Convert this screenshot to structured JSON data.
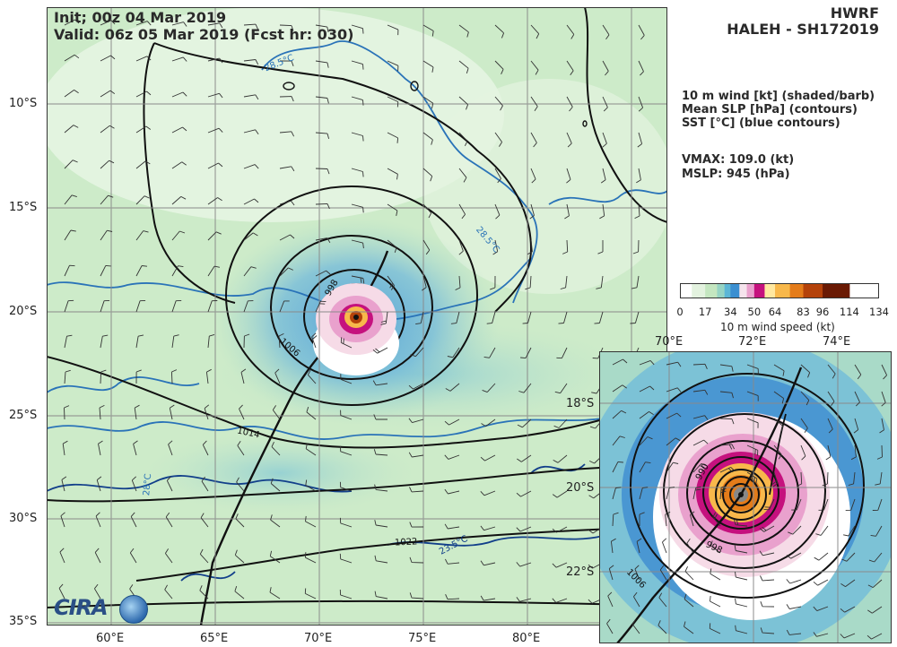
{
  "header": {
    "init": "Init;   00z 04 Mar 2019",
    "valid": "Valid: 06z 05 Mar 2019 (Fcst hr: 030)",
    "model": "HWRF",
    "storm": "HALEH - SH172019"
  },
  "legend": {
    "line1": "10 m wind [kt] (shaded/barb)",
    "line2": "Mean SLP [hPa] (contours)",
    "line3": "SST [°C] (blue contours)"
  },
  "stats": {
    "vmax": "VMAX: 109.0 (kt)",
    "mslp": "MSLP:  945 (hPa)"
  },
  "colorbar": {
    "label": "10 m wind speed (kt)",
    "ticks": [
      "0",
      "17",
      "34",
      "50",
      "64",
      "83",
      "96",
      "114",
      "134"
    ],
    "colors": [
      "#ffffff",
      "#e3f2df",
      "#c4e6c0",
      "#96d4c4",
      "#5cb6d6",
      "#3b8fd1",
      "#f5e3ec",
      "#e9a1cd",
      "#c5117e",
      "#ffe8a0",
      "#f8b84b",
      "#e47c1a",
      "#b4420a",
      "#6a1a04"
    ]
  },
  "main_map": {
    "lat_labels": [
      "10°S",
      "15°S",
      "20°S",
      "25°S",
      "30°S",
      "35°S"
    ],
    "lon_labels": [
      "60°E",
      "65°E",
      "70°E",
      "75°E",
      "80°E"
    ],
    "slp_labels": [
      "998",
      "1006",
      "1014",
      "1022"
    ],
    "sst_labels": [
      "28.5°C",
      "28.5°C",
      "28°C",
      "23.5°C"
    ]
  },
  "inset_map": {
    "lat_labels": [
      "18°S",
      "20°S",
      "22°S"
    ],
    "lon_labels": [
      "70°E",
      "72°E",
      "74°E"
    ],
    "slp_labels": [
      "990",
      "998",
      "1006"
    ]
  },
  "logo": {
    "text": "CIRA"
  },
  "chart_data": {
    "type": "heatmap",
    "title": "HWRF HALEH - SH172019",
    "storm_center": {
      "lon": 71.8,
      "lat": -20.2
    },
    "vmax_kt": 109.0,
    "mslp_hpa": 945,
    "main_extent": {
      "lon": [
        56.8,
        86.7
      ],
      "lat": [
        -35.3,
        -5.4
      ]
    },
    "inset_extent": {
      "lon": [
        69.0,
        75.9
      ],
      "lat": [
        -16.6,
        -23.4
      ]
    },
    "slp_contours_hpa": [
      998,
      1006,
      1014,
      1022
    ],
    "wind_colorbar_kt": [
      0,
      17,
      34,
      50,
      64,
      83,
      96,
      114,
      134
    ]
  }
}
